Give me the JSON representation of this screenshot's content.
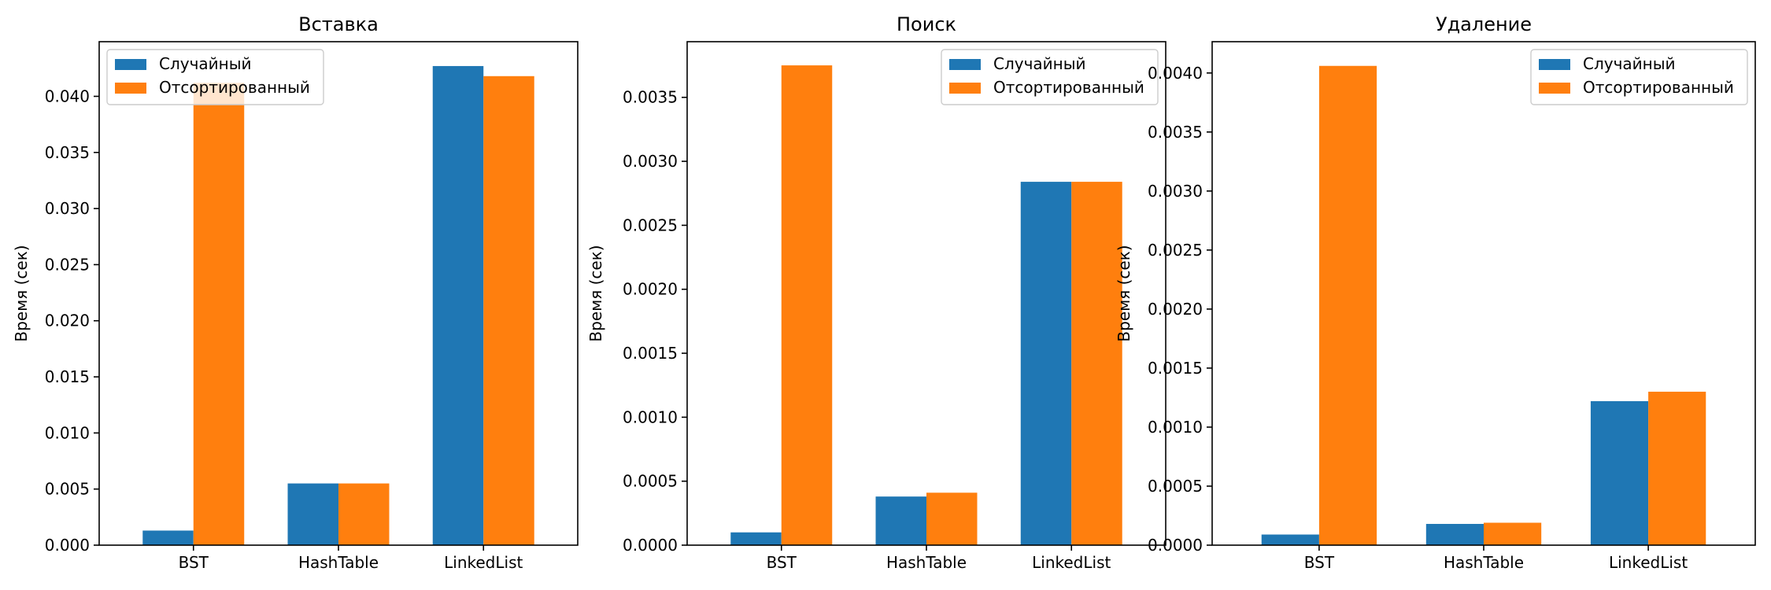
{
  "colors": {
    "series_random": "#1f77b4",
    "series_sorted": "#ff7f0e"
  },
  "chart_data": [
    {
      "type": "bar",
      "title": "Вставка",
      "xlabel": "",
      "ylabel": "Время (сек)",
      "categories": [
        "BST",
        "HashTable",
        "LinkedList"
      ],
      "series": [
        {
          "name": "Случайный",
          "values": [
            0.0013,
            0.0055,
            0.0427
          ]
        },
        {
          "name": "Отсортированный",
          "values": [
            0.0412,
            0.0055,
            0.0418
          ]
        }
      ],
      "ylim": [
        0,
        0.04487
      ],
      "yticks": [
        "0.000",
        "0.005",
        "0.010",
        "0.015",
        "0.020",
        "0.025",
        "0.030",
        "0.035",
        "0.040"
      ],
      "legend": "upper-left",
      "grid": false
    },
    {
      "type": "bar",
      "title": "Поиск",
      "xlabel": "",
      "ylabel": "Время (сек)",
      "categories": [
        "BST",
        "HashTable",
        "LinkedList"
      ],
      "series": [
        {
          "name": "Случайный",
          "values": [
            0.0001,
            0.00038,
            0.00284
          ]
        },
        {
          "name": "Отсортированный",
          "values": [
            0.00375,
            0.00041,
            0.00284
          ]
        }
      ],
      "ylim": [
        0,
        0.003935
      ],
      "yticks": [
        "0.0000",
        "0.0005",
        "0.0010",
        "0.0015",
        "0.0020",
        "0.0025",
        "0.0030",
        "0.0035"
      ],
      "legend": "upper-right",
      "grid": false
    },
    {
      "type": "bar",
      "title": "Удаление",
      "xlabel": "",
      "ylabel": "Время (сек)",
      "categories": [
        "BST",
        "HashTable",
        "LinkedList"
      ],
      "series": [
        {
          "name": "Случайный",
          "values": [
            9e-05,
            0.00018,
            0.00122
          ]
        },
        {
          "name": "Отсортированный",
          "values": [
            0.00406,
            0.00019,
            0.0013
          ]
        }
      ],
      "ylim": [
        0,
        0.004265
      ],
      "yticks": [
        "0.0000",
        "0.0005",
        "0.0010",
        "0.0015",
        "0.0020",
        "0.0025",
        "0.0030",
        "0.0035",
        "0.0040"
      ],
      "legend": "upper-right",
      "grid": false
    }
  ]
}
